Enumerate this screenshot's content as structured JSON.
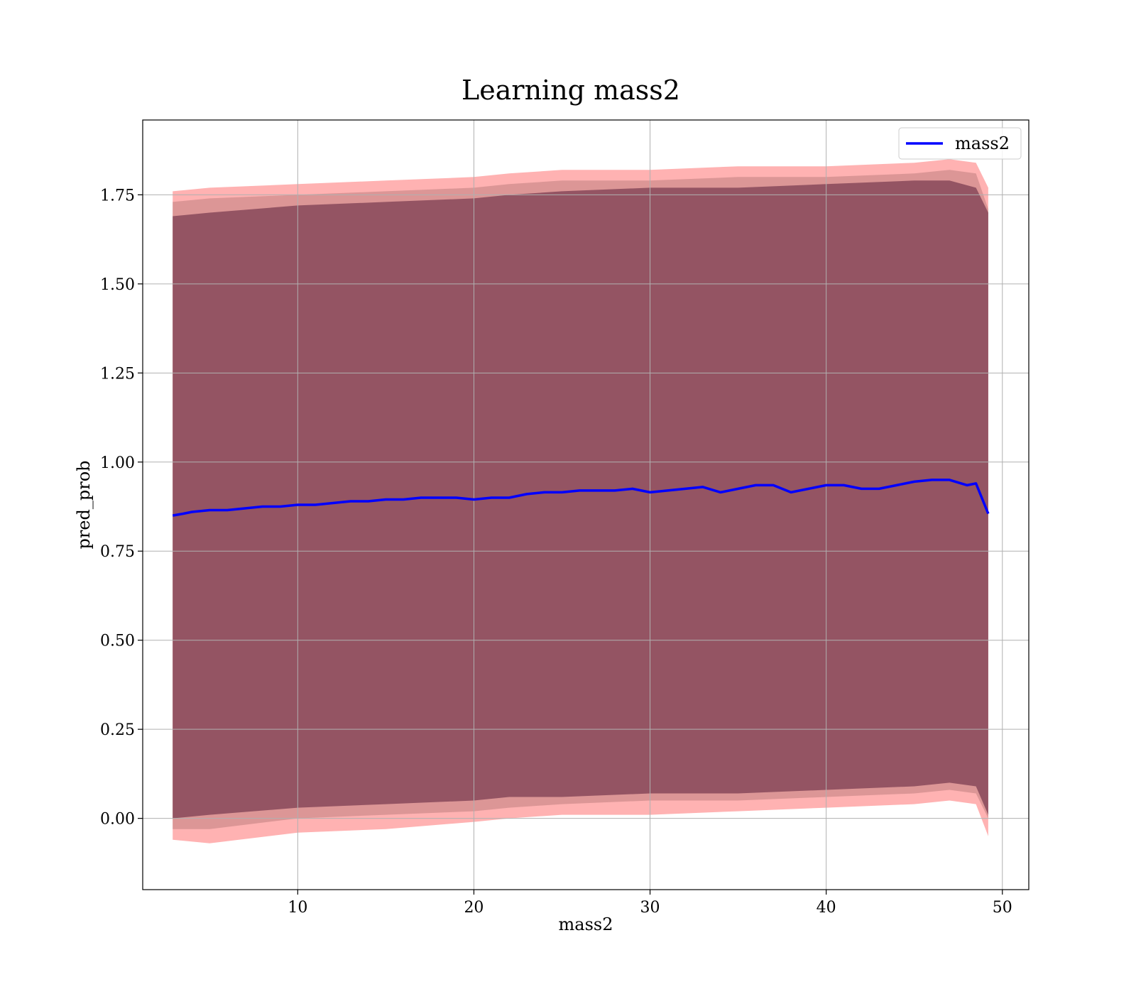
{
  "chart_data": {
    "type": "line",
    "title": "Learning mass2",
    "xlabel": "mass2",
    "ylabel": "pred_prob",
    "xlim": [
      1.2,
      51.5
    ],
    "ylim": [
      -0.2,
      1.96
    ],
    "xticks": [
      10,
      20,
      30,
      40,
      50
    ],
    "yticks": [
      0.0,
      0.25,
      0.5,
      0.75,
      1.0,
      1.25,
      1.5,
      1.75
    ],
    "ytick_labels": [
      "0.00",
      "0.25",
      "0.50",
      "0.75",
      "1.00",
      "1.25",
      "1.50",
      "1.75"
    ],
    "grid": true,
    "legend": {
      "placement": "top-right",
      "entries": [
        "mass2"
      ]
    },
    "series": [
      {
        "name": "mass2",
        "color": "#0000ff",
        "x": [
          2.9,
          3.5,
          4.0,
          5.0,
          6.0,
          7.0,
          8.0,
          9.0,
          10.0,
          11.0,
          12.0,
          13.0,
          14.0,
          15.0,
          16.0,
          17.0,
          18.0,
          19.0,
          20.0,
          21.0,
          22.0,
          23.0,
          24.0,
          25.0,
          26.0,
          27.0,
          28.0,
          29.0,
          30.0,
          31.0,
          32.0,
          33.0,
          34.0,
          35.0,
          36.0,
          37.0,
          38.0,
          39.0,
          40.0,
          41.0,
          42.0,
          43.0,
          44.0,
          45.0,
          46.0,
          47.0,
          48.0,
          48.5,
          49.2
        ],
        "y": [
          0.85,
          0.855,
          0.86,
          0.865,
          0.865,
          0.87,
          0.875,
          0.875,
          0.88,
          0.88,
          0.885,
          0.89,
          0.89,
          0.895,
          0.895,
          0.9,
          0.9,
          0.9,
          0.895,
          0.9,
          0.9,
          0.91,
          0.915,
          0.915,
          0.92,
          0.92,
          0.92,
          0.925,
          0.915,
          0.92,
          0.925,
          0.93,
          0.915,
          0.925,
          0.935,
          0.935,
          0.915,
          0.925,
          0.935,
          0.935,
          0.925,
          0.925,
          0.935,
          0.945,
          0.95,
          0.95,
          0.935,
          0.94,
          0.855
        ]
      }
    ],
    "bands": [
      {
        "color": "#ff0000",
        "x": [
          2.9,
          5.0,
          10.0,
          15.0,
          20.0,
          22.0,
          25.0,
          30.0,
          35.0,
          40.0,
          45.0,
          47.0,
          48.5,
          49.2
        ],
        "upper": [
          1.76,
          1.77,
          1.78,
          1.79,
          1.8,
          1.81,
          1.82,
          1.82,
          1.83,
          1.83,
          1.84,
          1.85,
          1.84,
          1.77
        ],
        "lower": [
          -0.06,
          -0.07,
          -0.04,
          -0.03,
          -0.01,
          0.0,
          0.01,
          0.01,
          0.02,
          0.03,
          0.04,
          0.05,
          0.04,
          -0.05
        ]
      },
      {
        "color": "#c08080",
        "x": [
          2.9,
          5.0,
          10.0,
          15.0,
          20.0,
          22.0,
          25.0,
          30.0,
          35.0,
          40.0,
          45.0,
          47.0,
          48.5,
          49.2
        ],
        "upper": [
          1.73,
          1.74,
          1.75,
          1.76,
          1.77,
          1.78,
          1.79,
          1.79,
          1.8,
          1.8,
          1.81,
          1.82,
          1.81,
          1.71
        ],
        "lower": [
          -0.03,
          -0.03,
          0.0,
          0.01,
          0.02,
          0.03,
          0.04,
          0.05,
          0.05,
          0.06,
          0.07,
          0.08,
          0.07,
          0.0
        ]
      },
      {
        "color": "#5a1f3a",
        "x": [
          2.9,
          5.0,
          10.0,
          15.0,
          20.0,
          22.0,
          25.0,
          30.0,
          35.0,
          40.0,
          45.0,
          47.0,
          48.5,
          49.2
        ],
        "upper": [
          1.69,
          1.7,
          1.72,
          1.73,
          1.74,
          1.75,
          1.76,
          1.77,
          1.77,
          1.78,
          1.79,
          1.79,
          1.77,
          1.7
        ],
        "lower": [
          0.0,
          0.01,
          0.03,
          0.04,
          0.05,
          0.06,
          0.06,
          0.07,
          0.07,
          0.08,
          0.09,
          0.1,
          0.09,
          0.01
        ]
      }
    ]
  }
}
